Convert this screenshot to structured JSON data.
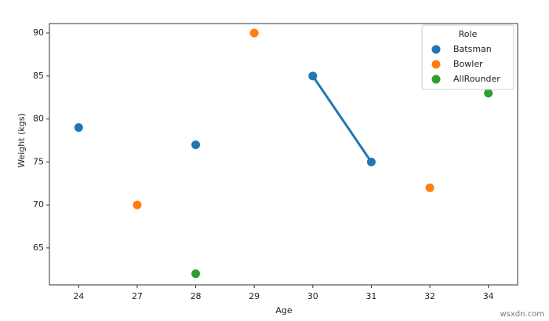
{
  "chart_data": {
    "type": "pointplot",
    "x_label": "Age",
    "y_label": "Weight (kgs)",
    "categories": [
      "24",
      "27",
      "28",
      "29",
      "30",
      "31",
      "32",
      "34"
    ],
    "series": [
      {
        "name": "Batsman",
        "color": "#1f77b4",
        "values": [
          79,
          null,
          77,
          null,
          85,
          75,
          null,
          null
        ]
      },
      {
        "name": "Bowler",
        "color": "#ff7f0e",
        "values": [
          null,
          70,
          null,
          90,
          null,
          null,
          72,
          null
        ]
      },
      {
        "name": "AllRounder",
        "color": "#2ca02c",
        "values": [
          null,
          null,
          62,
          null,
          null,
          null,
          null,
          83
        ]
      }
    ],
    "ylim": [
      60.7,
      91.1
    ],
    "yticks": [
      65,
      70,
      75,
      80,
      85,
      90
    ],
    "legend": {
      "title": "Role",
      "position": "upper right"
    },
    "grid": false
  },
  "watermark": "wsxdn.com"
}
